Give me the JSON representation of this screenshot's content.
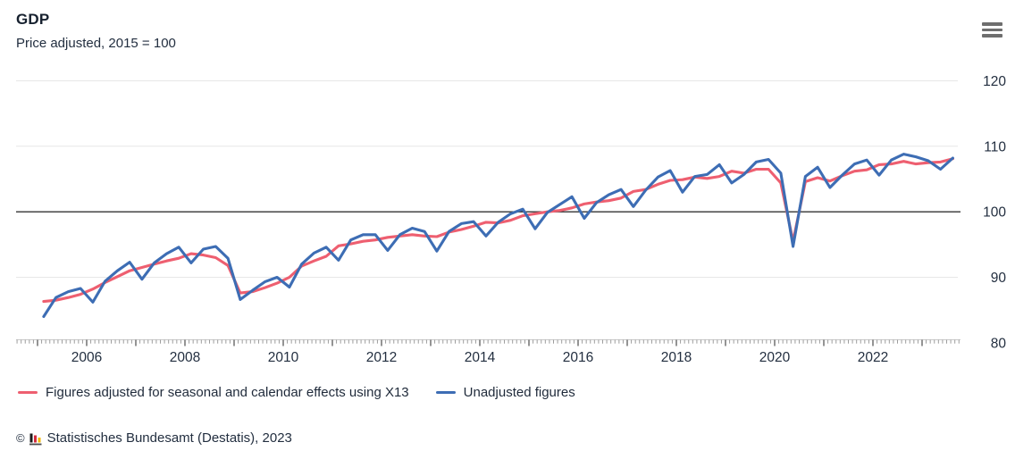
{
  "header": {
    "title": "GDP",
    "subtitle": "Price adjusted, 2015 = 100"
  },
  "colors": {
    "adjusted": "#ee5f70",
    "unadjusted": "#3d6db4",
    "grid": "#e7e7e7",
    "ref_line": "#333333",
    "axis_line": "#c9c9c9",
    "minor_tick": "#9d9d9d",
    "major_tick": "#4d4d4d",
    "text": "#232f40"
  },
  "legend": [
    {
      "label": "Figures adjusted for seasonal and calendar effects using X13",
      "color": "#ee5f70"
    },
    {
      "label": "Unadjusted figures",
      "color": "#3d6db4"
    }
  ],
  "footer": {
    "copyright": "©",
    "logo": "destatis-bars-icon",
    "source": "Statistisches Bundesamt (Destatis), 2023"
  },
  "chart_data": {
    "type": "line",
    "title": "GDP",
    "subtitle": "Price adjusted, 2015 = 100",
    "x_start_year": 2005,
    "x_step_years": 0.25,
    "x_end": "2023 Q3",
    "x_year_labels": [
      "2006",
      "2008",
      "2010",
      "2012",
      "2014",
      "2016",
      "2018",
      "2020",
      "2022"
    ],
    "y_ticks": [
      80,
      90,
      100,
      110,
      120
    ],
    "ylim": [
      80,
      122
    ],
    "y_reference_line": 100,
    "grid": true,
    "legend_position": "bottom-left",
    "series": [
      {
        "name": "Figures adjusted for seasonal and calendar effects using X13",
        "color": "#ee5f70",
        "values": [
          86.3,
          86.5,
          86.9,
          87.4,
          88.2,
          89.2,
          90.1,
          91.0,
          91.5,
          92.0,
          92.5,
          92.9,
          93.6,
          93.4,
          93.0,
          91.8,
          87.6,
          87.8,
          88.4,
          89.1,
          90.0,
          91.7,
          92.5,
          93.2,
          94.8,
          95.1,
          95.5,
          95.7,
          96.1,
          96.3,
          96.5,
          96.3,
          96.2,
          96.9,
          97.3,
          97.8,
          98.4,
          98.3,
          98.7,
          99.4,
          99.7,
          100.0,
          100.2,
          100.6,
          101.2,
          101.5,
          101.7,
          102.1,
          103.1,
          103.4,
          104.2,
          104.8,
          104.9,
          105.3,
          105.1,
          105.4,
          106.2,
          105.9,
          106.5,
          106.5,
          104.4,
          95.5,
          104.6,
          105.2,
          104.7,
          105.5,
          106.2,
          106.4,
          107.2,
          107.3,
          107.7,
          107.3,
          107.5,
          107.6,
          108.1
        ]
      },
      {
        "name": "Unadjusted figures",
        "color": "#3d6db4",
        "values": [
          84.0,
          86.9,
          87.8,
          88.3,
          86.2,
          89.4,
          91.0,
          92.3,
          89.7,
          92.2,
          93.6,
          94.6,
          92.2,
          94.3,
          94.7,
          92.9,
          86.6,
          88.0,
          89.3,
          90.0,
          88.5,
          92.0,
          93.7,
          94.6,
          92.6,
          95.7,
          96.5,
          96.5,
          94.1,
          96.5,
          97.5,
          97.0,
          94.0,
          97.0,
          98.2,
          98.5,
          96.3,
          98.4,
          99.7,
          100.4,
          97.4,
          99.9,
          101.1,
          102.3,
          99.0,
          101.4,
          102.6,
          103.4,
          100.8,
          103.3,
          105.3,
          106.3,
          103.0,
          105.4,
          105.7,
          107.2,
          104.4,
          105.7,
          107.6,
          108.0,
          105.9,
          94.7,
          105.4,
          106.8,
          103.7,
          105.6,
          107.3,
          107.9,
          105.6,
          107.9,
          108.8,
          108.4,
          107.8,
          106.5,
          108.2
        ]
      }
    ]
  }
}
